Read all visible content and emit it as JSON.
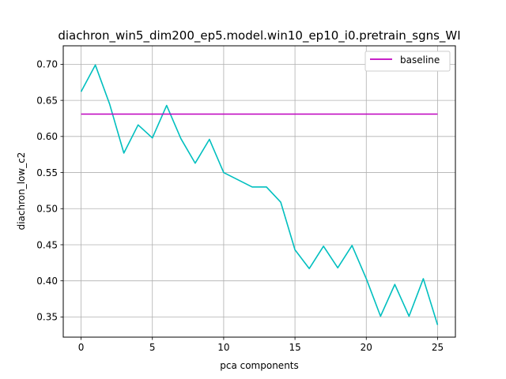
{
  "chart_data": {
    "type": "line",
    "title": "diachron_win5_dim200_ep5.model.win10_ep10_i0.pretrain_sgns_WI",
    "xlabel": "pca components",
    "ylabel": "diachron_low_c2",
    "xlim": [
      -1.25,
      26.25
    ],
    "ylim": [
      0.322,
      0.7256
    ],
    "xticks": [
      0,
      5,
      10,
      15,
      20,
      25
    ],
    "yticks": [
      0.35,
      0.4,
      0.45,
      0.5,
      0.55,
      0.6,
      0.65,
      0.7
    ],
    "xtick_labels": [
      "0",
      "5",
      "10",
      "15",
      "20",
      "25"
    ],
    "ytick_labels": [
      "0.35",
      "0.40",
      "0.45",
      "0.50",
      "0.55",
      "0.60",
      "0.65",
      "0.70"
    ],
    "grid": true,
    "legend_position": "top-right",
    "series": [
      {
        "name": "",
        "color": "#00bfbf",
        "x": [
          0,
          1,
          2,
          3,
          4,
          5,
          6,
          7,
          8,
          9,
          10,
          11,
          12,
          13,
          14,
          15,
          16,
          17,
          18,
          19,
          20,
          21,
          22,
          23,
          24,
          25
        ],
        "values": [
          0.662,
          0.699,
          0.645,
          0.577,
          0.616,
          0.598,
          0.643,
          0.597,
          0.563,
          0.596,
          0.55,
          0.54,
          0.53,
          0.53,
          0.509,
          0.443,
          0.417,
          0.448,
          0.418,
          0.449,
          0.403,
          0.351,
          0.395,
          0.351,
          0.403,
          0.339
        ]
      },
      {
        "name": "baseline",
        "color": "#bf00bf",
        "x": [
          0,
          25
        ],
        "values": [
          0.631,
          0.631
        ]
      }
    ]
  }
}
